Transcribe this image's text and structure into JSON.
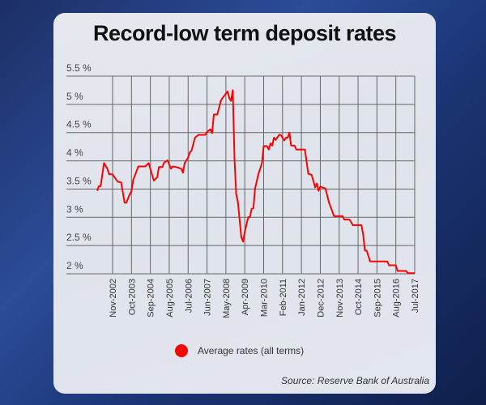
{
  "chart_data": {
    "type": "line",
    "title": "Record-low term deposit rates",
    "xlabel": "",
    "ylabel": "",
    "ylim": [
      2,
      5.5
    ],
    "yticks": [
      "2 %",
      "2.5 %",
      "3 %",
      "3.5 %",
      "4 %",
      "4.5 %",
      "5 %",
      "5.5 %"
    ],
    "ytick_values": [
      2,
      2.5,
      3,
      3.5,
      4,
      4.5,
      5,
      5.5
    ],
    "xticks": [
      "Nov-2002",
      "Oct-2003",
      "Sep-2004",
      "Aug-2005",
      "Jul-2006",
      "Jun-2007",
      "May-2008",
      "Apr-2009",
      "Mar-2010",
      "Feb-2011",
      "Jan-2012",
      "Dec-2012",
      "Nov-2013",
      "Oct-2014",
      "Sep-2015",
      "Aug-2016",
      "Jul-2017"
    ],
    "grid": true,
    "legend_position": "bottom",
    "source": "Source: Reserve Bank of Australia",
    "series": [
      {
        "name": "Average rates (all terms)",
        "color": "#ff0000",
        "points": [
          [
            "2002-02",
            3.47
          ],
          [
            "2002-03",
            3.55
          ],
          [
            "2002-04",
            3.55
          ],
          [
            "2002-06",
            3.96
          ],
          [
            "2002-08",
            3.86
          ],
          [
            "2002-09",
            3.76
          ],
          [
            "2002-11",
            3.76
          ],
          [
            "2003-02",
            3.63
          ],
          [
            "2003-04",
            3.62
          ],
          [
            "2003-06",
            3.26
          ],
          [
            "2003-07",
            3.26
          ],
          [
            "2003-09",
            3.41
          ],
          [
            "2003-10",
            3.46
          ],
          [
            "2003-11",
            3.66
          ],
          [
            "2004-02",
            3.9
          ],
          [
            "2004-06",
            3.9
          ],
          [
            "2004-08",
            3.96
          ],
          [
            "2004-11",
            3.65
          ],
          [
            "2005-01",
            3.71
          ],
          [
            "2005-02",
            3.89
          ],
          [
            "2005-04",
            3.89
          ],
          [
            "2005-05",
            3.97
          ],
          [
            "2005-07",
            4.01
          ],
          [
            "2005-09",
            3.86
          ],
          [
            "2005-10",
            3.9
          ],
          [
            "2005-12",
            3.89
          ],
          [
            "2006-03",
            3.86
          ],
          [
            "2006-04",
            3.79
          ],
          [
            "2006-05",
            3.96
          ],
          [
            "2006-07",
            4.06
          ],
          [
            "2006-08",
            4.15
          ],
          [
            "2006-09",
            4.18
          ],
          [
            "2006-11",
            4.41
          ],
          [
            "2007-01",
            4.46
          ],
          [
            "2007-05",
            4.46
          ],
          [
            "2007-06",
            4.51
          ],
          [
            "2007-08",
            4.56
          ],
          [
            "2007-09",
            4.49
          ],
          [
            "2007-10",
            4.82
          ],
          [
            "2007-12",
            4.82
          ],
          [
            "2008-02",
            5.06
          ],
          [
            "2008-03",
            5.11
          ],
          [
            "2008-06",
            5.23
          ],
          [
            "2008-07",
            5.11
          ],
          [
            "2008-08",
            5.06
          ],
          [
            "2008-09",
            5.25
          ],
          [
            "2008-10",
            4.03
          ],
          [
            "2008-11",
            3.41
          ],
          [
            "2008-12",
            3.27
          ],
          [
            "2009-02",
            2.65
          ],
          [
            "2009-03",
            2.57
          ],
          [
            "2009-04",
            2.74
          ],
          [
            "2009-06",
            3.0
          ],
          [
            "2009-07",
            3.0
          ],
          [
            "2009-08",
            3.15
          ],
          [
            "2009-09",
            3.16
          ],
          [
            "2009-10",
            3.51
          ],
          [
            "2009-12",
            3.77
          ],
          [
            "2010-02",
            3.96
          ],
          [
            "2010-03",
            4.26
          ],
          [
            "2010-05",
            4.26
          ],
          [
            "2010-06",
            4.2
          ],
          [
            "2010-07",
            4.31
          ],
          [
            "2010-08",
            4.27
          ],
          [
            "2010-09",
            4.41
          ],
          [
            "2010-10",
            4.37
          ],
          [
            "2010-12",
            4.46
          ],
          [
            "2011-01",
            4.46
          ],
          [
            "2011-03",
            4.36
          ],
          [
            "2011-04",
            4.41
          ],
          [
            "2011-05",
            4.41
          ],
          [
            "2011-06",
            4.5
          ],
          [
            "2011-07",
            4.27
          ],
          [
            "2011-09",
            4.27
          ],
          [
            "2011-10",
            4.2
          ],
          [
            "2012-03",
            4.2
          ],
          [
            "2012-05",
            3.77
          ],
          [
            "2012-07",
            3.75
          ],
          [
            "2012-09",
            3.53
          ],
          [
            "2012-10",
            3.6
          ],
          [
            "2012-11",
            3.47
          ],
          [
            "2012-12",
            3.54
          ],
          [
            "2013-03",
            3.51
          ],
          [
            "2013-05",
            3.27
          ],
          [
            "2013-08",
            3.02
          ],
          [
            "2014-01",
            3.02
          ],
          [
            "2014-02",
            2.96
          ],
          [
            "2014-05",
            2.96
          ],
          [
            "2014-07",
            2.86
          ],
          [
            "2014-12",
            2.86
          ],
          [
            "2015-01",
            2.69
          ],
          [
            "2015-02",
            2.41
          ],
          [
            "2015-03",
            2.41
          ],
          [
            "2015-05",
            2.22
          ],
          [
            "2016-03",
            2.22
          ],
          [
            "2016-04",
            2.15
          ],
          [
            "2016-08",
            2.15
          ],
          [
            "2016-09",
            2.05
          ],
          [
            "2017-02",
            2.05
          ],
          [
            "2017-03",
            2.01
          ],
          [
            "2017-07",
            2.01
          ]
        ]
      }
    ]
  }
}
